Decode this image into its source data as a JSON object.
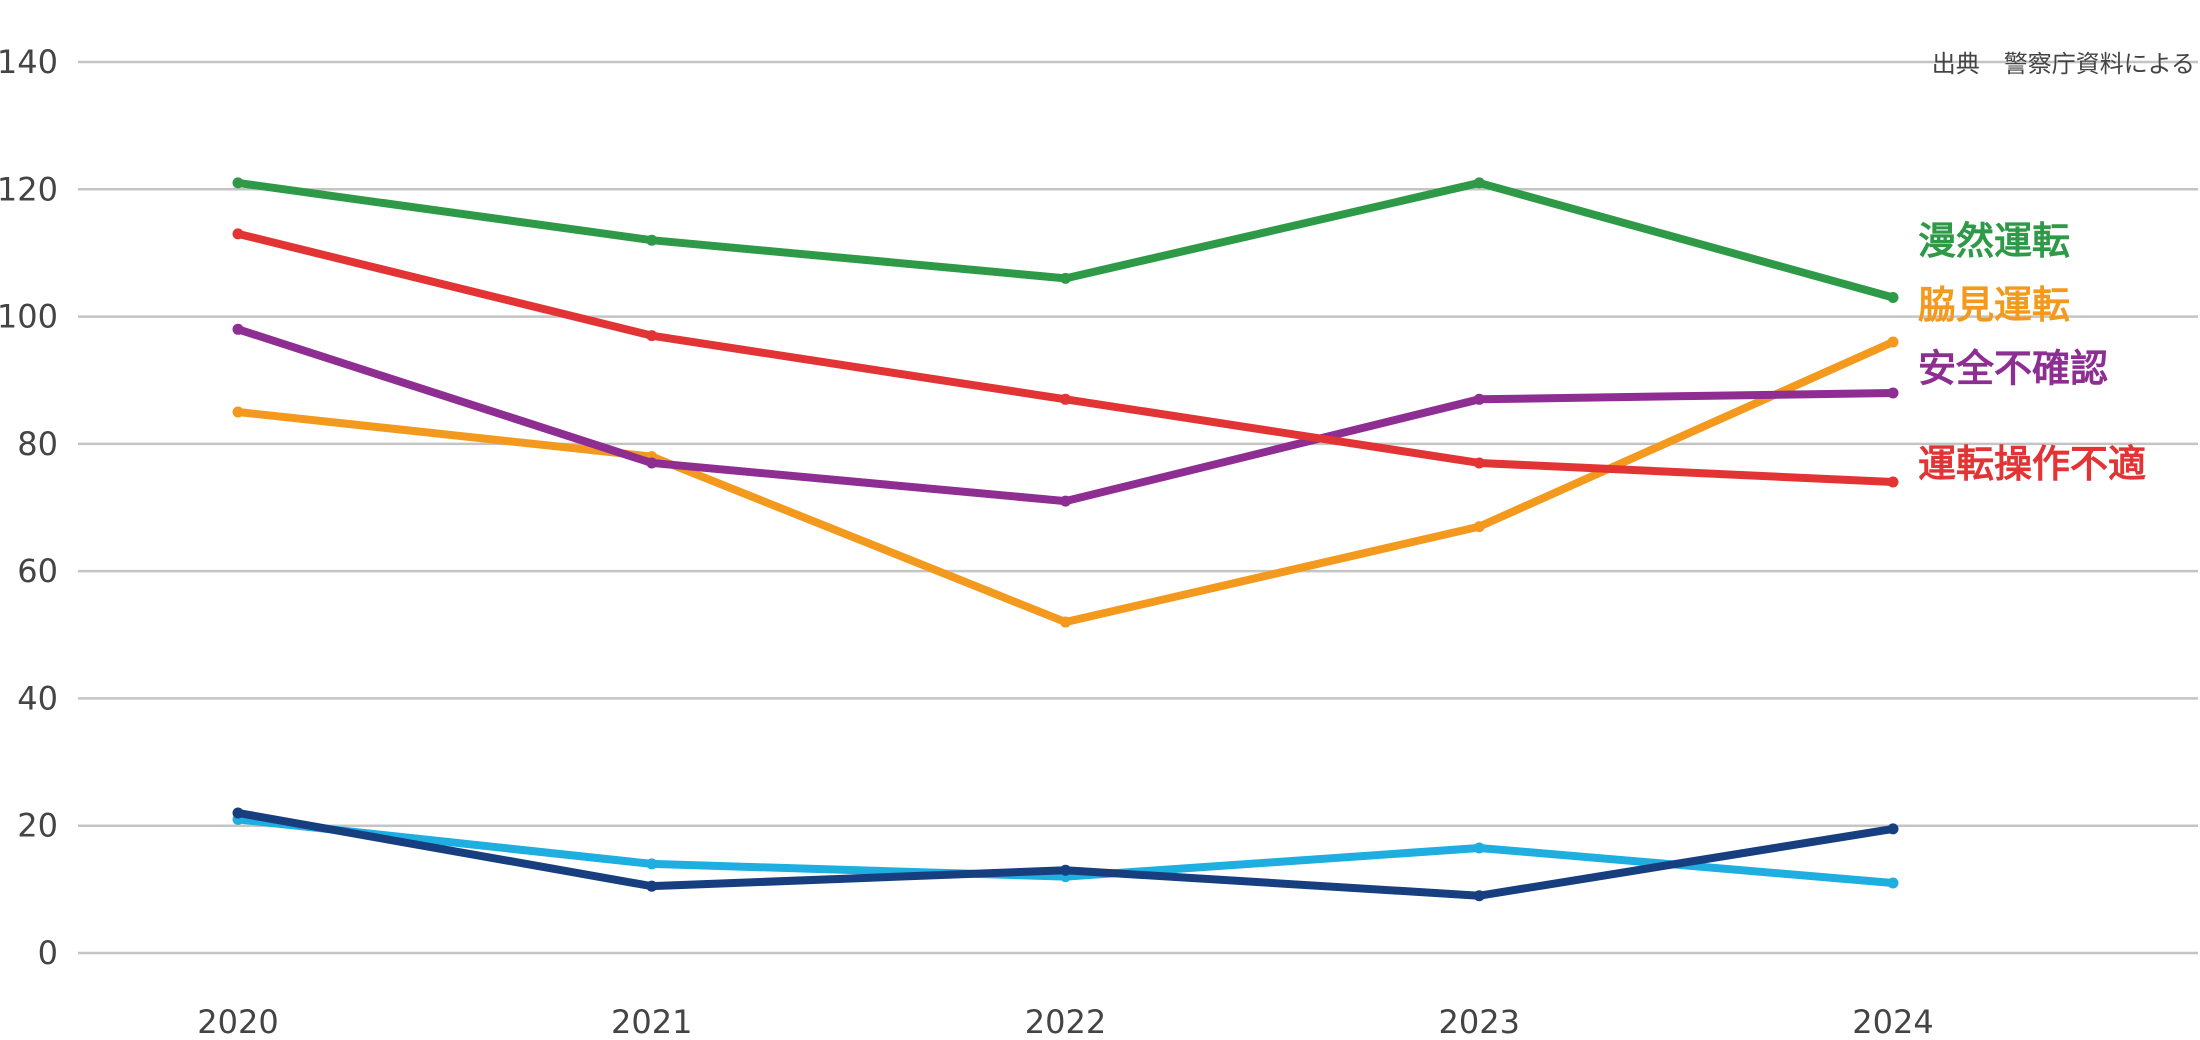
{
  "chart_data": {
    "type": "line",
    "title": "",
    "xlabel": "",
    "ylabel": "",
    "source_note": "出典　警察庁資料による",
    "x": [
      "2020",
      "2021",
      "2022",
      "2023",
      "2024"
    ],
    "ylim": [
      0,
      140
    ],
    "yticks": [
      0,
      20,
      40,
      60,
      80,
      100,
      120,
      140
    ],
    "ytick_labels": [
      "0",
      "20",
      "40",
      "60",
      "80",
      "100",
      "120",
      "140"
    ],
    "grid": true,
    "legend": "inline labels at right end of lines",
    "series": [
      {
        "name": "漫然運転",
        "color": "#2e9a48",
        "values": [
          121,
          112,
          106,
          121,
          103
        ],
        "label_y": 112
      },
      {
        "name": "脇見運転",
        "color": "#f39a1e",
        "values": [
          85,
          78,
          52,
          67,
          96
        ],
        "label_y": 102
      },
      {
        "name": "安全不確認",
        "color": "#8e2e92",
        "values": [
          98,
          77,
          71,
          87,
          88
        ],
        "label_y": 92
      },
      {
        "name": "運転操作不適",
        "color": "#e23434",
        "values": [
          113,
          97,
          87,
          77,
          74
        ],
        "label_y": 77
      },
      {
        "name": "",
        "color": "#1eaee0",
        "values": [
          21,
          14,
          12,
          16.5,
          11
        ]
      },
      {
        "name": "",
        "color": "#173e7e",
        "values": [
          22,
          10.5,
          13,
          9,
          19.5
        ]
      }
    ]
  }
}
